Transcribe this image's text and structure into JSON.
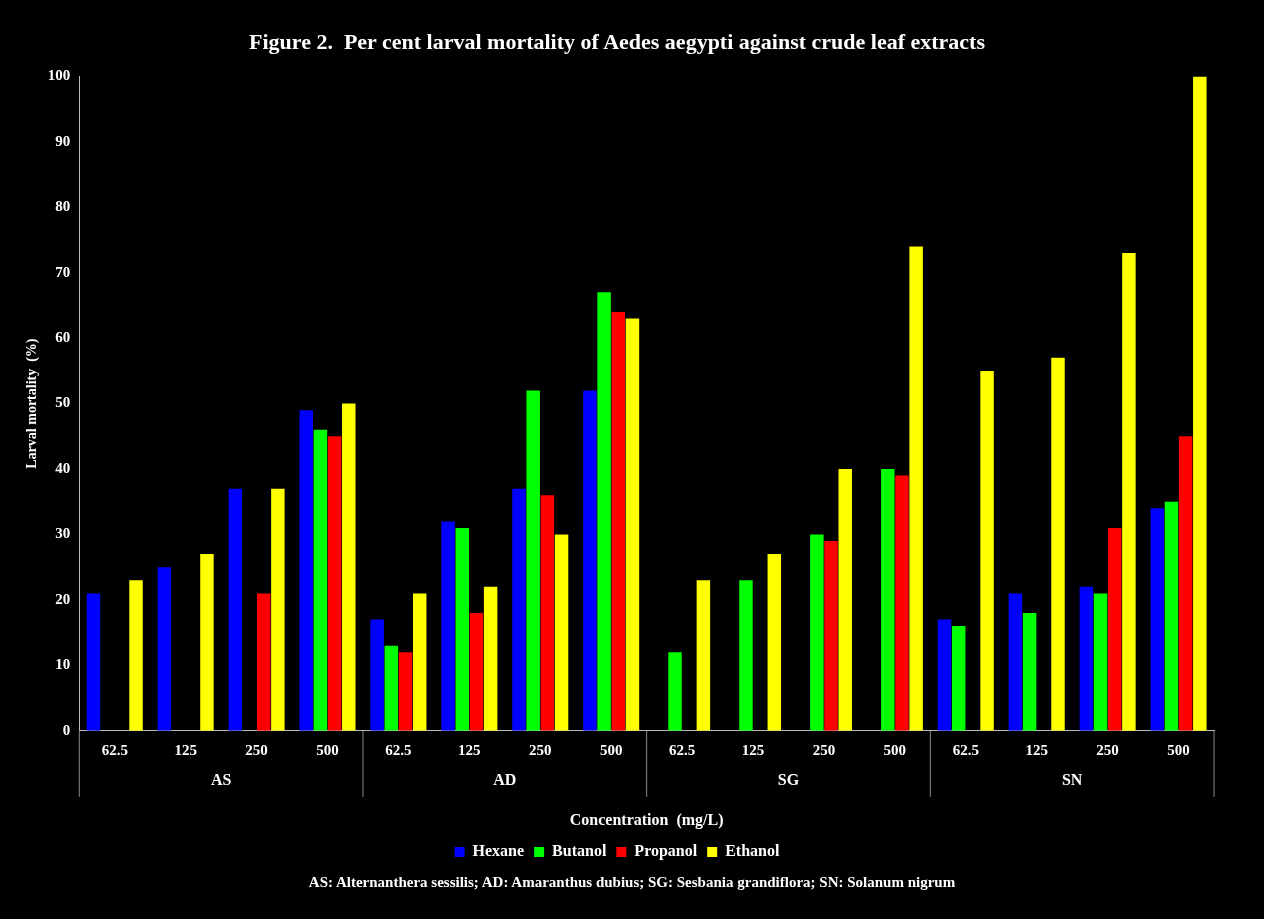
{
  "chart_data": {
    "type": "bar",
    "title": "Figure 2.  Per cent larval mortality of Aedes aegypti against crude leaf extracts",
    "xlabel": "Concentration  (mg/L)",
    "ylabel": "Larval mortality  (%)",
    "categories": [
      "62.5",
      "125",
      "250",
      "500",
      "62.5",
      "125",
      "250",
      "500",
      "62.5",
      "125",
      "250",
      "500",
      "62.5",
      "125",
      "250",
      "500"
    ],
    "series": [
      {
        "name": "Hexane",
        "color": "#0000ff",
        "values": [
          21,
          25,
          37,
          49,
          17,
          32,
          37,
          52,
          0,
          0,
          0,
          0,
          17,
          21,
          22,
          34
        ]
      },
      {
        "name": "Butanol",
        "color": "#00ff00",
        "values": [
          0,
          0,
          0,
          46,
          13,
          31,
          52,
          67,
          12,
          23,
          30,
          40,
          16,
          18,
          21,
          35
        ]
      },
      {
        "name": "Propanol",
        "color": "#ff0000",
        "values": [
          0,
          0,
          21,
          45,
          12,
          18,
          36,
          64,
          0,
          0,
          29,
          39,
          0,
          0,
          31,
          45
        ]
      },
      {
        "name": "Ethanol",
        "color": "#ffff00",
        "values": [
          23,
          27,
          37,
          50,
          21,
          22,
          30,
          63,
          23,
          27,
          40,
          74,
          55,
          57,
          73,
          100
        ]
      }
    ],
    "ylim": [
      0,
      100
    ],
    "yticks": [
      0,
      10,
      20,
      30,
      40,
      50,
      60,
      70,
      80,
      90,
      100
    ],
    "grid": false,
    "legend": "bottom",
    "annotations": [
      "AS",
      "AD",
      "SG",
      "SN",
      "AS: Alternanthera sessilis; AD: Amaranthus  dubius; SG: Sesbania grandiflora; SN: Solanum nigrum"
    ]
  }
}
